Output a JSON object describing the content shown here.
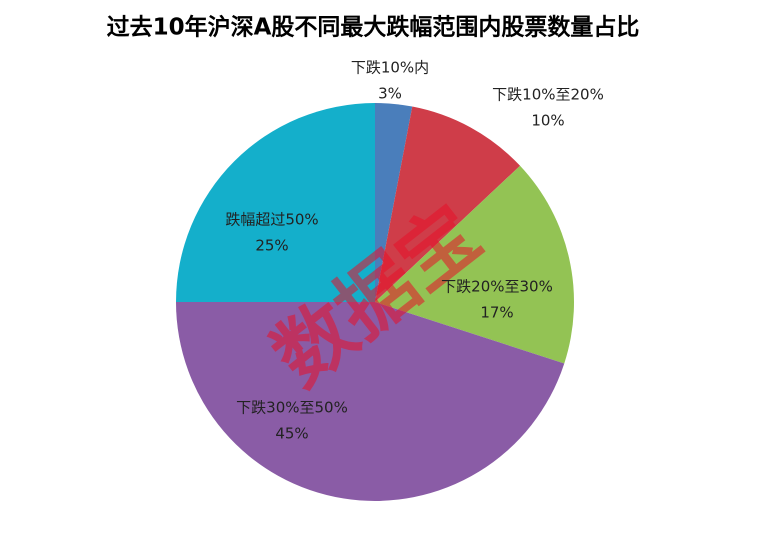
{
  "chart_data": {
    "type": "pie",
    "title": "过去10年沪深A股不同最大跌幅范围内股票数量占比",
    "categories": [
      "下跌10%内",
      "下跌10%至20%",
      "下跌20%至30%",
      "下跌30%至50%",
      "跌幅超过50%"
    ],
    "values": [
      3,
      10,
      17,
      45,
      25
    ],
    "value_labels": [
      "3%",
      "10%",
      "17%",
      "45%",
      "25%"
    ],
    "colors": [
      "#4a7ebb",
      "#cf3d49",
      "#93c354",
      "#8a5ca6",
      "#14afcb"
    ],
    "watermark": "数据宝"
  }
}
